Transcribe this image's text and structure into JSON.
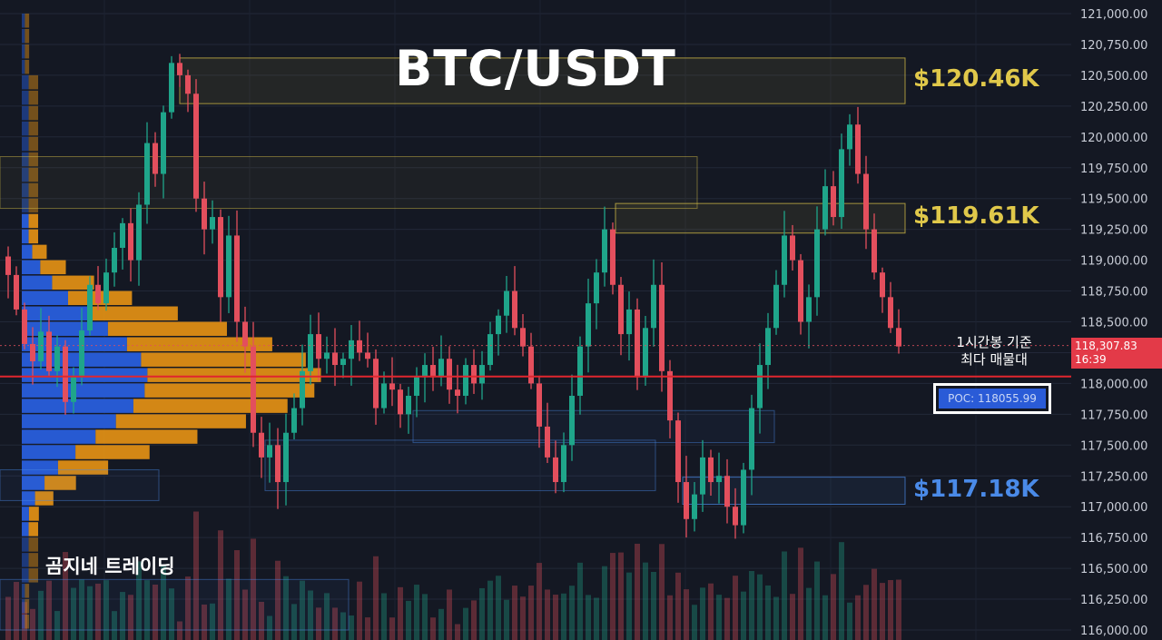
{
  "title": "BTC/USDT",
  "brand": "곰지네 트레이딩",
  "note_lines": [
    "1시간봉 기준",
    "최다 매물대"
  ],
  "poc_label": "POC: 118055.99",
  "current_price": "118,307.83",
  "countdown": "16:39",
  "zones": [
    {
      "label": "$120.46K",
      "price_low": 120270,
      "price_high": 120640,
      "color": "#e0c84a"
    },
    {
      "label": "$119.61K",
      "price_low": 119220,
      "price_high": 119460,
      "color": "#e0c84a"
    },
    {
      "label": "$117.18K",
      "price_low": 117020,
      "price_high": 117240,
      "color": "#4a8ae8"
    }
  ],
  "colors": {
    "up": "#1fa58a",
    "down": "#e34f5d",
    "volume_profile_up": "#2962e6",
    "volume_profile_down": "#e89414",
    "poc_line": "#e0262e",
    "background": "#141823"
  },
  "chart_data": {
    "type": "candlestick",
    "title": "BTC/USDT",
    "timeframe": "1시간봉",
    "ylim": [
      116000,
      121000
    ],
    "y_ticks": [
      "121,000.00",
      "120,750.00",
      "120,500.00",
      "120,250.00",
      "120,000.00",
      "119,750.00",
      "119,500.00",
      "119,250.00",
      "119,000.00",
      "118,750.00",
      "118,500.00",
      "118,250.00",
      "118,000.00",
      "117,750.00",
      "117,500.00",
      "117,250.00",
      "117,000.00",
      "116,750.00",
      "116,500.00",
      "116,250.00",
      "116,000.00"
    ],
    "y_tick_values": [
      121000,
      120750,
      120500,
      120250,
      120000,
      119750,
      119500,
      119250,
      119000,
      118750,
      118500,
      118250,
      118000,
      117750,
      117500,
      117250,
      117000,
      116750,
      116500,
      116250,
      116000
    ],
    "poc": 118055.99,
    "last_price": 118307.83,
    "closes": [
      118880,
      118600,
      118320,
      118180,
      118420,
      118100,
      118300,
      117850,
      118050,
      118430,
      118800,
      118650,
      118900,
      119100,
      119300,
      119000,
      119450,
      119950,
      119700,
      120200,
      120600,
      120500,
      120350,
      119500,
      119250,
      119350,
      118700,
      119200,
      118500,
      118300,
      117600,
      117400,
      117500,
      117200,
      117600,
      117800,
      118100,
      118400,
      118200,
      118250,
      118150,
      118200,
      118350,
      118250,
      118200,
      117800,
      118000,
      117950,
      117750,
      117900,
      118050,
      118150,
      118050,
      118200,
      117950,
      117900,
      118150,
      118000,
      118150,
      118400,
      118550,
      118750,
      118450,
      118300,
      118000,
      117650,
      117400,
      117200,
      117500,
      117900,
      118300,
      118650,
      118900,
      119250,
      118800,
      118400,
      118600,
      118050,
      118450,
      118800,
      118100,
      117700,
      117200,
      116900,
      117100,
      117400,
      117200,
      117250,
      117000,
      116850,
      117300,
      117800,
      118150,
      118450,
      118800,
      119200,
      119000,
      118500,
      118700,
      119250,
      119600,
      119350,
      119900,
      120100,
      119700,
      119250,
      118900,
      118700,
      118450,
      118300
    ]
  }
}
